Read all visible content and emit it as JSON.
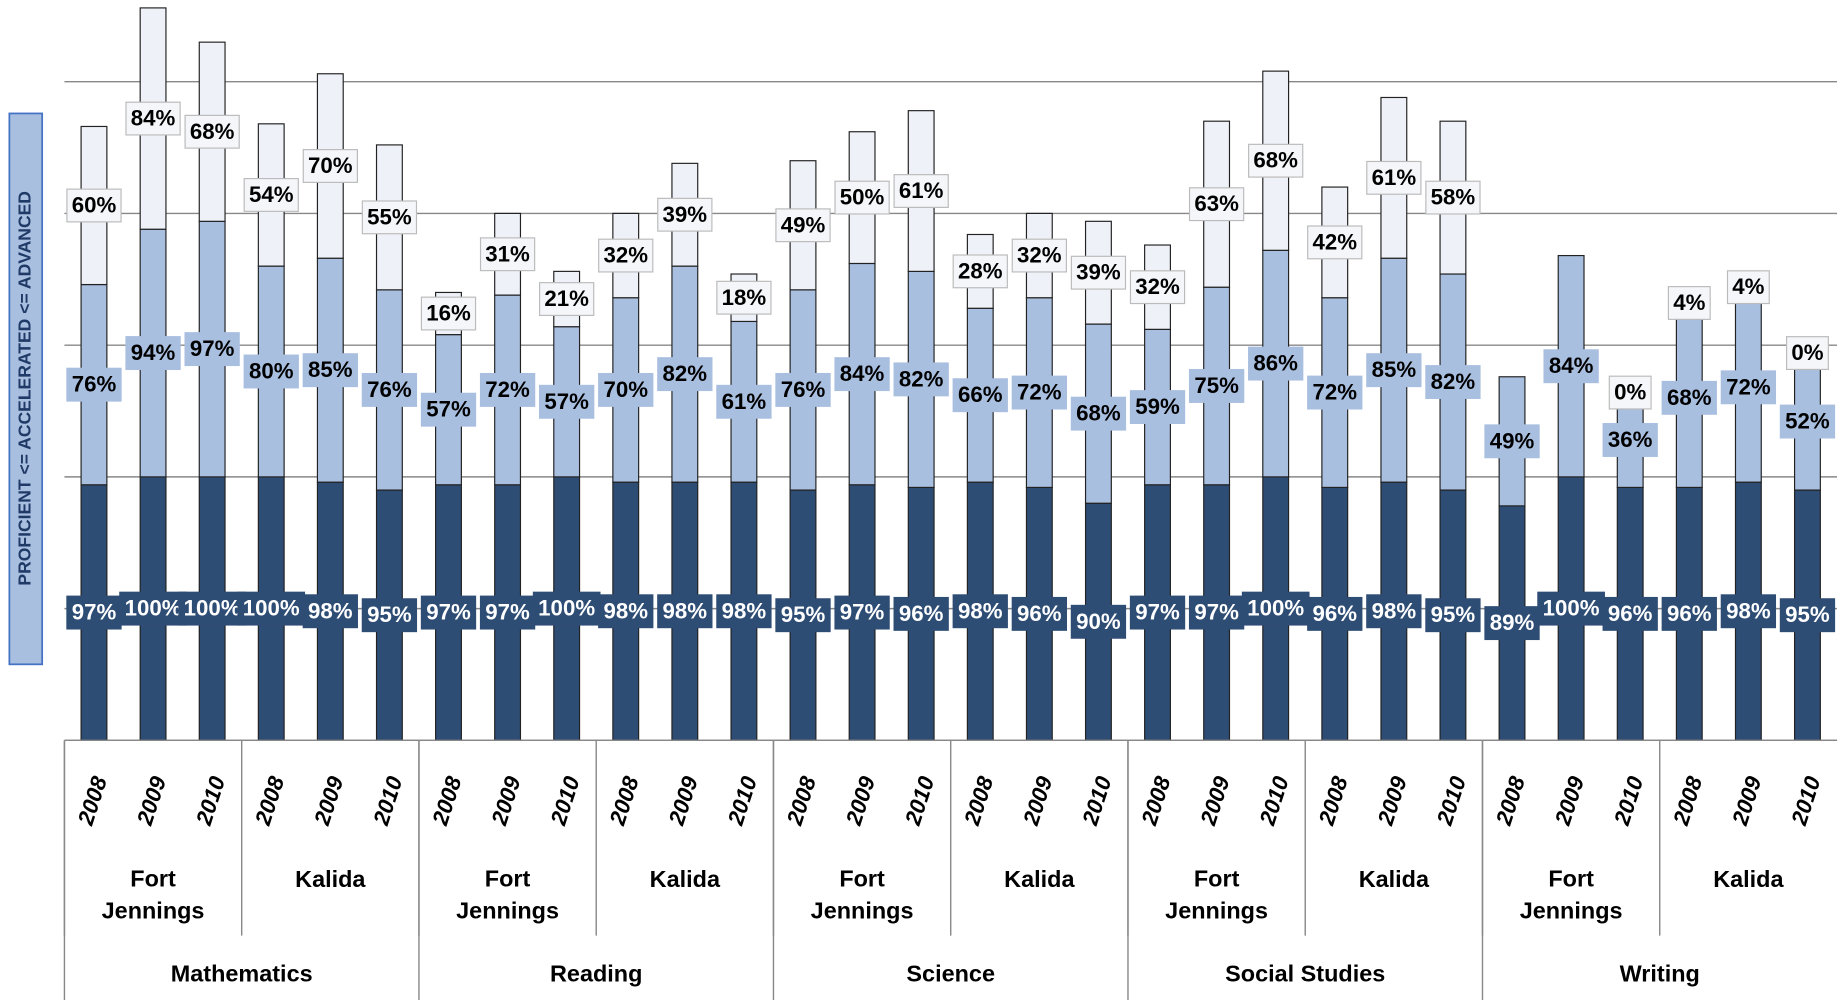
{
  "chart_data": {
    "type": "stacked_bar",
    "y_axis_label": "PROFICIENT <= ACCELERATED <= ADVANCED",
    "categories": [
      "2008",
      "2009",
      "2010",
      "2008",
      "2009",
      "2010",
      "2008",
      "2009",
      "2010",
      "2008",
      "2009",
      "2010",
      "2008",
      "2009",
      "2010",
      "2008",
      "2009",
      "2010",
      "2008",
      "2009",
      "2010",
      "2008",
      "2009",
      "2010",
      "2008",
      "2009",
      "2010",
      "2008",
      "2009",
      "2010"
    ],
    "schools": [
      "Fort Jennings",
      "Kalida",
      "Fort Jennings",
      "Kalida",
      "Fort Jennings",
      "Kalida",
      "Fort Jennings",
      "Kalida",
      "Fort Jennings",
      "Kalida"
    ],
    "subjects": [
      "Mathematics",
      "Reading",
      "Science",
      "Social Studies",
      "Writing"
    ],
    "series": [
      {
        "color": "#2e4d75",
        "value_labels": [
          "97%",
          "100%",
          "100%",
          "100%",
          "98%",
          "95%",
          "97%",
          "97%",
          "100%",
          "98%",
          "98%",
          "98%",
          "95%",
          "97%",
          "96%",
          "98%",
          "96%",
          "90%",
          "97%",
          "97%",
          "100%",
          "96%",
          "98%",
          "95%",
          "89%",
          "100%",
          "96%",
          "96%",
          "98%",
          "95%"
        ],
        "values": [
          97,
          100,
          100,
          100,
          98,
          95,
          97,
          97,
          100,
          98,
          98,
          98,
          95,
          97,
          96,
          98,
          96,
          90,
          97,
          97,
          100,
          96,
          98,
          95,
          89,
          100,
          96,
          96,
          98,
          95
        ]
      },
      {
        "color": "#a9bfe0",
        "value_labels": [
          "76%",
          "94%",
          "97%",
          "80%",
          "85%",
          "76%",
          "57%",
          "72%",
          "57%",
          "70%",
          "82%",
          "61%",
          "76%",
          "84%",
          "82%",
          "66%",
          "72%",
          "68%",
          "59%",
          "75%",
          "86%",
          "72%",
          "85%",
          "82%",
          "49%",
          "84%",
          "36%",
          "68%",
          "72%",
          "52%"
        ],
        "values": [
          76,
          94,
          97,
          80,
          85,
          76,
          57,
          72,
          57,
          70,
          82,
          61,
          76,
          84,
          82,
          66,
          72,
          68,
          59,
          75,
          86,
          72,
          85,
          82,
          49,
          84,
          36,
          68,
          72,
          52
        ]
      },
      {
        "color": "#eef2f8",
        "value_labels": [
          "60%",
          "84%",
          "68%",
          "54%",
          "70%",
          "55%",
          "16%",
          "31%",
          "21%",
          "32%",
          "39%",
          "18%",
          "49%",
          "50%",
          "61%",
          "28%",
          "32%",
          "39%",
          "32%",
          "63%",
          "68%",
          "42%",
          "61%",
          "58%",
          null,
          null,
          "0%",
          "4%",
          "4%",
          "0%"
        ],
        "values": [
          60,
          84,
          68,
          54,
          70,
          55,
          16,
          31,
          21,
          32,
          39,
          18,
          49,
          50,
          61,
          28,
          32,
          39,
          32,
          63,
          68,
          42,
          61,
          58,
          null,
          null,
          0,
          4,
          4,
          0
        ]
      }
    ],
    "ylim": [
      0,
      281
    ],
    "yticks": [
      0,
      50,
      100,
      150,
      200,
      250
    ],
    "grid": true
  }
}
